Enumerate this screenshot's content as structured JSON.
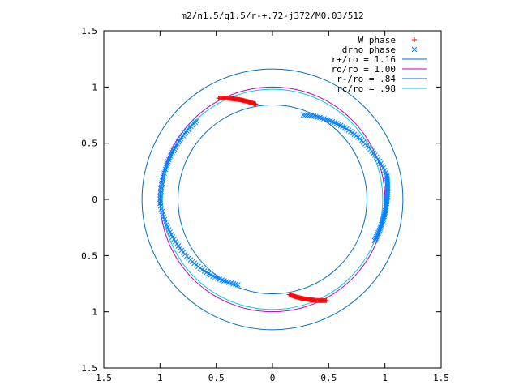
{
  "chart_data": {
    "type": "scatter",
    "title": "m2/n1.5/q1.5/r-+.72-j372/M0.03/512",
    "xlim": [
      -1.5,
      1.5
    ],
    "ylim": [
      -1.5,
      1.5
    ],
    "xticks": [
      -1.5,
      -1,
      -0.5,
      0,
      0.5,
      1,
      1.5
    ],
    "yticks": [
      -1.5,
      -1,
      -0.5,
      0,
      0.5,
      1,
      1.5
    ],
    "xtick_labels": [
      "1.5",
      "1",
      "0.5",
      "0",
      "0.5",
      "1",
      "1.5"
    ],
    "ytick_labels": [
      "1.5",
      "1",
      "0.5",
      "0",
      "0.5",
      "1",
      "1.5"
    ],
    "grid": false,
    "legend_position": "top-right",
    "series": [
      {
        "name": "W phase",
        "marker": "plus",
        "color": "#ff0000",
        "arcs": [
          {
            "r": [
              1.02,
              0.86
            ],
            "theta_deg": [
              118,
              100
            ]
          },
          {
            "r": [
              0.86,
              1.02
            ],
            "theta_deg": [
              280,
              298
            ]
          }
        ]
      },
      {
        "name": "drho phase",
        "marker": "cross",
        "color": "#0080ff",
        "arcs": [
          {
            "r": [
              0.8,
              1.04
            ],
            "theta_deg": [
              70,
              12
            ]
          },
          {
            "r": [
              1.04,
              0.98
            ],
            "theta_deg": [
              12,
              -22
            ]
          },
          {
            "r": [
              0.97,
              1.0
            ],
            "theta_deg": [
              134,
              182
            ]
          },
          {
            "r": [
              1.0,
              0.82
            ],
            "theta_deg": [
              182,
              248
            ]
          }
        ]
      }
    ],
    "circles": [
      {
        "name": "r+/ro = 1.16",
        "r": 1.16,
        "color": "#0070c0"
      },
      {
        "name": "ro/ro = 1.00",
        "r": 1.0,
        "color": "#c000c0"
      },
      {
        "name": "r-/ro = .84",
        "r": 0.84,
        "color": "#0070c0"
      },
      {
        "name": "rc/ro = .98",
        "r": 0.98,
        "color": "#00d0d0"
      }
    ]
  }
}
